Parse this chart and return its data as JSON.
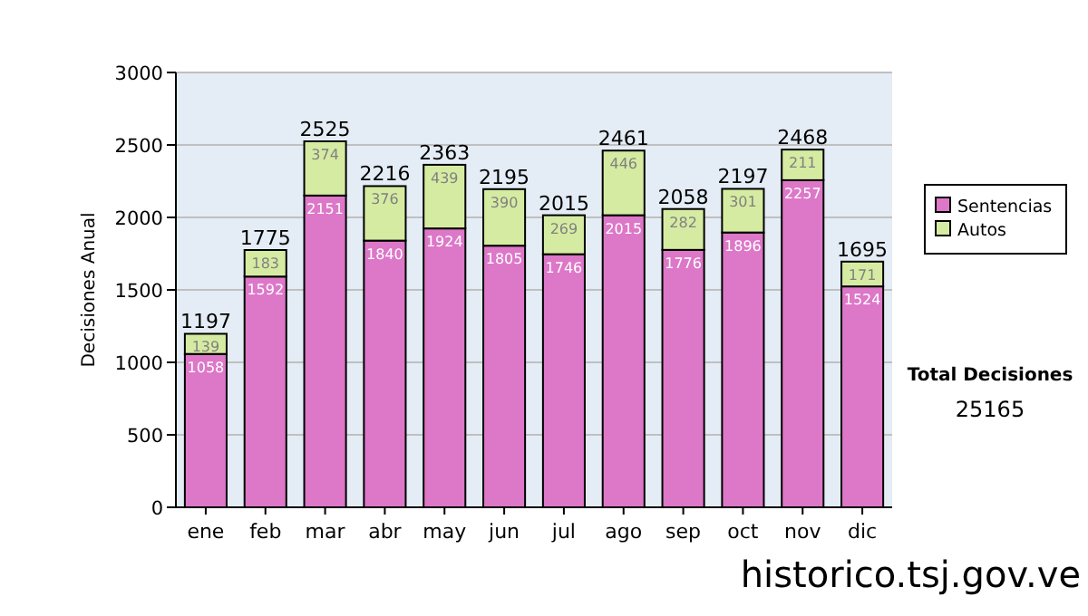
{
  "chart_data": {
    "type": "bar",
    "stacked": true,
    "ylabel": "Decisiones Anual",
    "categories": [
      "ene",
      "feb",
      "mar",
      "abr",
      "may",
      "jun",
      "jul",
      "ago",
      "sep",
      "oct",
      "nov",
      "dic"
    ],
    "series": [
      {
        "name": "Sentencias",
        "color": "#dd77c8",
        "values": [
          1058,
          1592,
          2151,
          1840,
          1924,
          1805,
          1746,
          2015,
          1776,
          1896,
          2257,
          1524
        ]
      },
      {
        "name": "Autos",
        "color": "#d6eba2",
        "values": [
          139,
          183,
          374,
          376,
          439,
          390,
          269,
          446,
          282,
          301,
          211,
          171
        ]
      }
    ],
    "totals": [
      "1197",
      "1775",
      "2525",
      "2216",
      "2363",
      "2195",
      "2015",
      "2461",
      "2058",
      "2197",
      "2468",
      "1695"
    ],
    "data_labels": true,
    "ylim": [
      0,
      3000
    ],
    "yticks": [
      0,
      500,
      1000,
      1500,
      2000,
      2500,
      3000
    ],
    "grid": "y",
    "legend": "right",
    "annotations": [
      "Total Decisiones",
      "25165",
      "historico.tsj.gov.ve"
    ]
  }
}
